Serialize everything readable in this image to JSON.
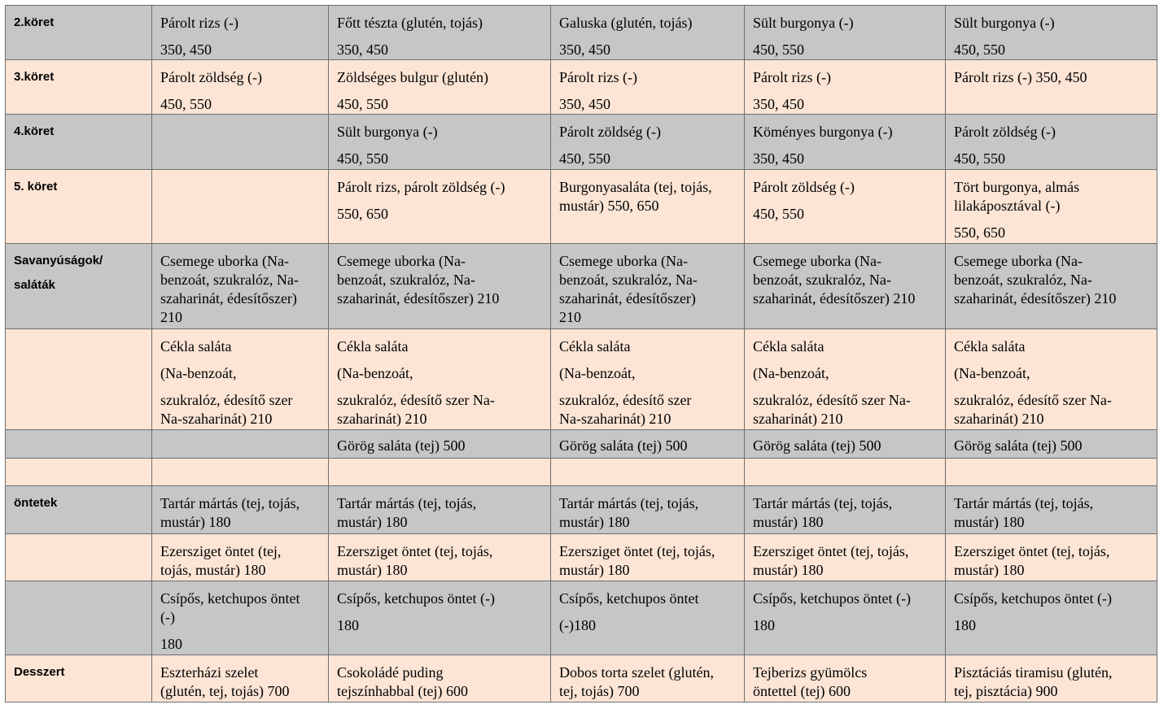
{
  "rows": [
    {
      "label": "2.köret",
      "cells": [
        [
          "Párolt rizs (-)",
          "350, 450"
        ],
        [
          "Főtt tészta (glutén, tojás)",
          "350, 450"
        ],
        [
          "Galuska (glutén, tojás)",
          "350, 450"
        ],
        [
          "Sült burgonya (-)",
          "450, 550"
        ],
        [
          "Sült burgonya (-)",
          "450, 550"
        ]
      ]
    },
    {
      "label": "3.köret",
      "cells": [
        [
          "Párolt zöldség (-)",
          "450, 550"
        ],
        [
          "Zöldséges bulgur (glutén)",
          "450, 550"
        ],
        [
          "Párolt rizs (-)",
          "350, 450"
        ],
        [
          "Párolt rizs (-)",
          "350, 450"
        ],
        [
          "Párolt rizs (-) 350, 450"
        ]
      ]
    },
    {
      "label": "4.köret",
      "cells": [
        [],
        [
          "Sült burgonya (-)",
          "450, 550"
        ],
        [
          "Párolt zöldség (-)",
          "450, 550"
        ],
        [
          "Köményes burgonya (-)",
          "350, 450"
        ],
        [
          "Párolt zöldség (-)",
          "450, 550"
        ]
      ]
    },
    {
      "label": "5. köret",
      "cells": [
        [],
        [
          "Párolt rizs, párolt zöldség (-)",
          "550, 650"
        ],
        [
          "Burgonyasaláta (tej, tojás,",
          "mustár) 550, 650"
        ],
        [
          "Párolt zöldség (-)",
          "450, 550"
        ],
        [
          "Tört burgonya, almás",
          "lilakáposztával (-)",
          "550, 650"
        ]
      ]
    },
    {
      "label1": "Savanyúságok/",
      "label2": "saláták",
      "cells": [
        [
          "Csemege uborka (Na-",
          "benzoát, szukralóz, Na-",
          "szaharinát, édesítőszer)",
          "210"
        ],
        [
          "Csemege uborka (Na-",
          "benzoát, szukralóz, Na-",
          "szaharinát, édesítőszer) 210"
        ],
        [
          "Csemege uborka (Na-",
          "benzoát, szukralóz, Na-",
          "szaharinát, édesítőszer)",
          "210"
        ],
        [
          "Csemege uborka (Na-",
          "benzoát, szukralóz, Na-",
          "szaharinát, édesítőszer) 210"
        ],
        [
          "Csemege uborka (Na-",
          "benzoát, szukralóz, Na-",
          "szaharinát, édesítőszer) 210"
        ]
      ]
    },
    {
      "label": "",
      "cells": [
        [
          "Cékla saláta",
          "(Na-benzoát,",
          "szukralóz, édesítő szer",
          "Na-szaharinát) 210"
        ],
        [
          "Cékla saláta",
          "(Na-benzoát,",
          "szukralóz, édesítő szer Na-",
          "szaharinát) 210"
        ],
        [
          "Cékla saláta",
          "(Na-benzoát,",
          "szukralóz, édesítő szer",
          "Na-szaharinát) 210"
        ],
        [
          "Cékla saláta",
          "(Na-benzoát,",
          "szukralóz, édesítő szer Na-",
          "szaharinát) 210"
        ],
        [
          "Cékla saláta",
          "(Na-benzoát,",
          "szukralóz, édesítő szer Na-",
          "szaharinát) 210"
        ]
      ]
    },
    {
      "label": "",
      "cells": [
        [],
        [
          "Görög saláta (tej) 500"
        ],
        [
          "Görög saláta (tej) 500"
        ],
        [
          "Görög saláta (tej) 500"
        ],
        [
          "Görög saláta (tej) 500"
        ]
      ]
    },
    {
      "label": "",
      "cells": [
        [],
        [],
        [],
        [],
        []
      ]
    },
    {
      "label": "öntetek",
      "cells": [
        [
          "Tartár mártás (tej, tojás,",
          "mustár) 180"
        ],
        [
          "Tartár mártás (tej, tojás,",
          "mustár) 180"
        ],
        [
          "Tartár mártás (tej, tojás,",
          "mustár) 180"
        ],
        [
          "Tartár mártás (tej, tojás,",
          "mustár) 180"
        ],
        [
          "Tartár mártás (tej, tojás,",
          "mustár) 180"
        ]
      ]
    },
    {
      "label": "",
      "cells": [
        [
          "Ezersziget öntet (tej,",
          "tojás, mustár) 180"
        ],
        [
          "Ezersziget öntet (tej, tojás,",
          "mustár) 180"
        ],
        [
          "Ezersziget öntet (tej, tojás,",
          "mustár) 180"
        ],
        [
          "Ezersziget öntet (tej, tojás,",
          "mustár) 180"
        ],
        [
          "Ezersziget öntet (tej, tojás,",
          "mustár) 180"
        ]
      ]
    },
    {
      "label": "",
      "cells": [
        [
          "Csípős, ketchupos öntet",
          "(-)",
          "180"
        ],
        [
          "Csípős, ketchupos öntet (-)",
          "180"
        ],
        [
          "Csípős, ketchupos öntet",
          "(-)180"
        ],
        [
          "Csípős, ketchupos öntet (-)",
          "180"
        ],
        [
          "Csípős, ketchupos öntet (-)",
          "180"
        ]
      ]
    },
    {
      "label": "Desszert",
      "cells": [
        [
          "Eszterházi szelet",
          "(glutén, tej, tojás) 700"
        ],
        [
          "Csokoládé puding",
          "tejszínhabbal (tej) 600"
        ],
        [
          "Dobos torta szelet (glutén,",
          "tej, tojás) 700"
        ],
        [
          "Tejberizs gyümölcs",
          "öntettel (tej) 600"
        ],
        [
          "Pisztáciás tiramisu (glutén,",
          "tej, pisztácia) 900"
        ]
      ]
    }
  ]
}
